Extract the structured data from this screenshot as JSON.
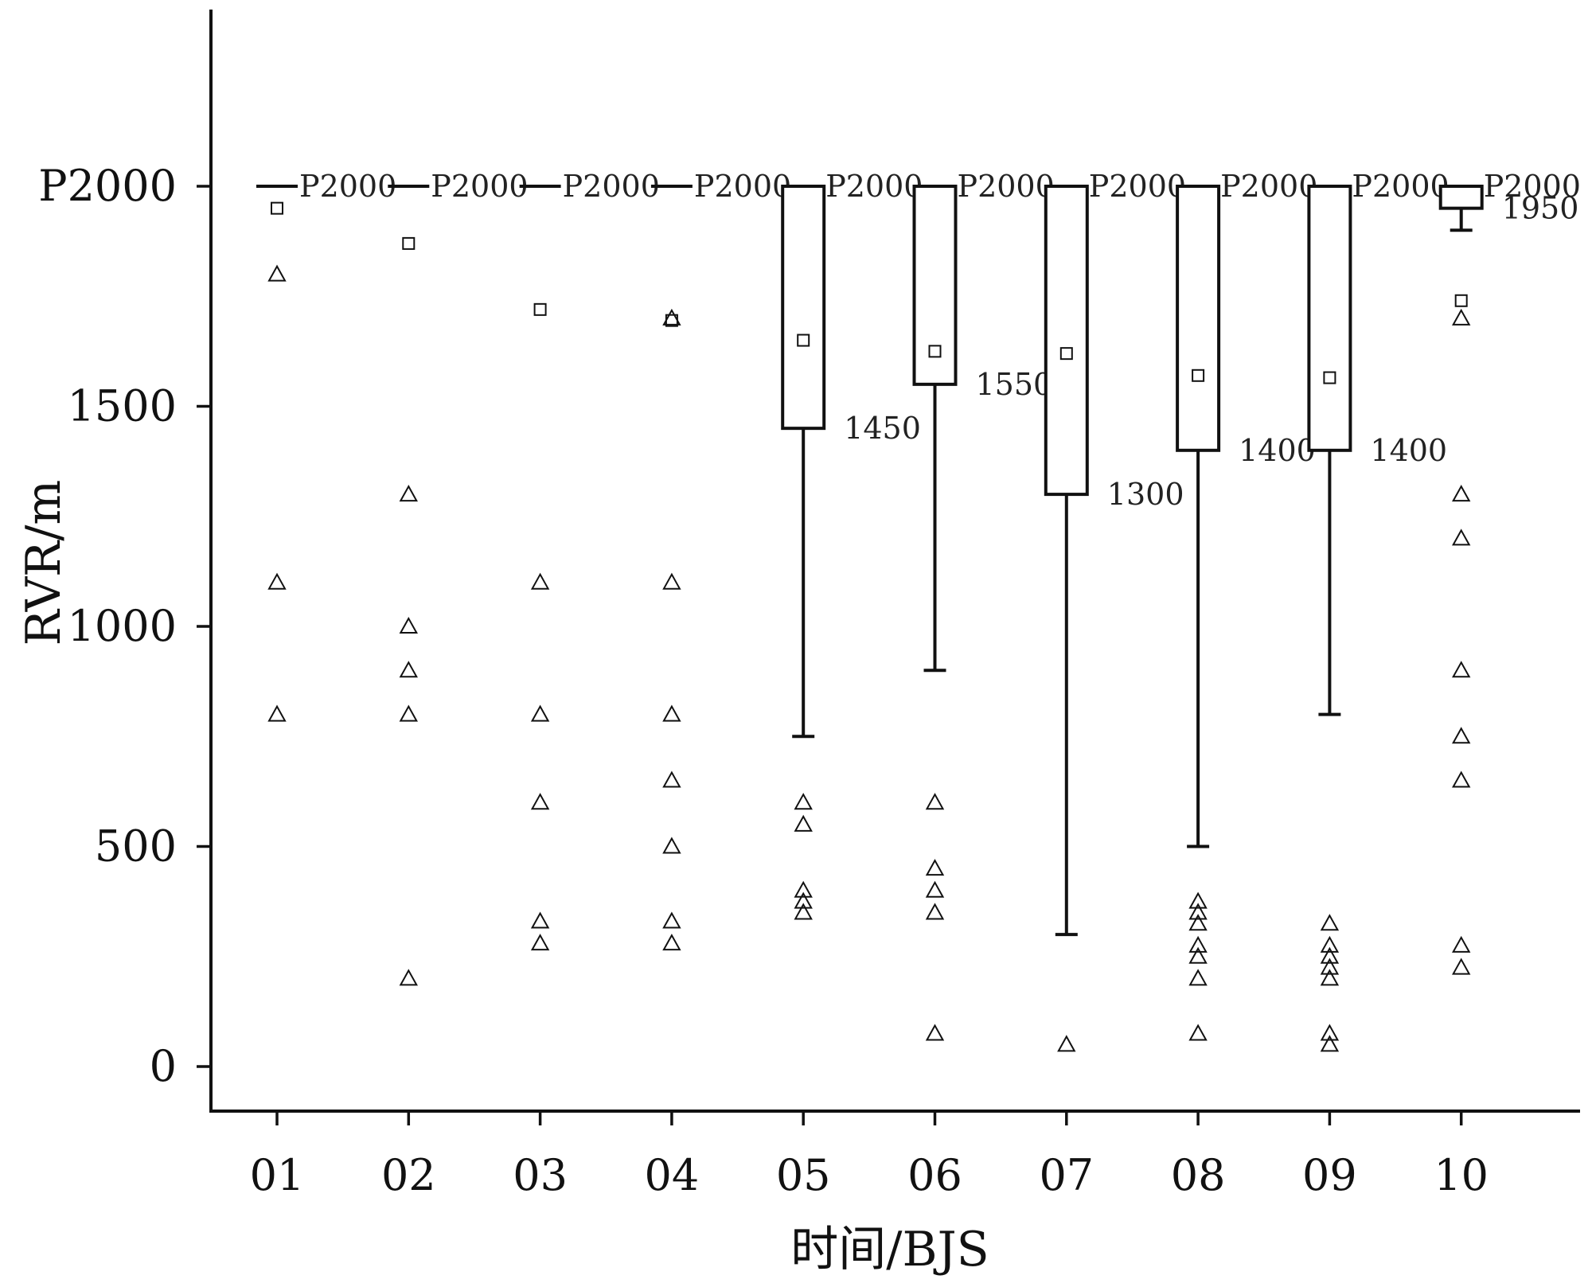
{
  "chart_data": {
    "type": "boxplot",
    "xlabel": "时间/BJS",
    "ylabel": "RVR/m",
    "ylim": [
      -100,
      2400
    ],
    "y_ticks": [
      {
        "value": 0,
        "label": "0"
      },
      {
        "value": 500,
        "label": "500"
      },
      {
        "value": 1000,
        "label": "1000"
      },
      {
        "value": 1500,
        "label": "1500"
      },
      {
        "value": 2000,
        "label": "P2000"
      }
    ],
    "categories": [
      "01",
      "02",
      "03",
      "04",
      "05",
      "06",
      "07",
      "08",
      "09",
      "10"
    ],
    "boxes": [
      {
        "category": "01",
        "q1": 2000,
        "q3": 2000,
        "whisker_low": 2000,
        "whisker_high": 2000,
        "mean": 1950,
        "q3_label": "P2000",
        "q1_label": "",
        "outliers": [
          1800,
          1100,
          800
        ]
      },
      {
        "category": "02",
        "q1": 2000,
        "q3": 2000,
        "whisker_low": 2000,
        "whisker_high": 2000,
        "mean": 1870,
        "q3_label": "P2000",
        "q1_label": "",
        "outliers": [
          1300,
          1000,
          900,
          800,
          200
        ]
      },
      {
        "category": "03",
        "q1": 2000,
        "q3": 2000,
        "whisker_low": 2000,
        "whisker_high": 2000,
        "mean": 1720,
        "q3_label": "P2000",
        "q1_label": "",
        "outliers": [
          1100,
          800,
          600,
          330,
          280
        ]
      },
      {
        "category": "04",
        "q1": 2000,
        "q3": 2000,
        "whisker_low": 2000,
        "whisker_high": 2000,
        "mean": 1695,
        "q3_label": "P2000",
        "q1_label": "",
        "outliers": [
          1700,
          1100,
          800,
          650,
          500,
          330,
          280
        ]
      },
      {
        "category": "05",
        "q1": 1450,
        "q3": 2000,
        "whisker_low": 750,
        "whisker_high": 2000,
        "mean": 1650,
        "q3_label": "P2000",
        "q1_label": "1450",
        "outliers": [
          600,
          550,
          400,
          375,
          350
        ]
      },
      {
        "category": "06",
        "q1": 1550,
        "q3": 2000,
        "whisker_low": 900,
        "whisker_high": 2000,
        "mean": 1625,
        "q3_label": "P2000",
        "q1_label": "1550",
        "outliers": [
          600,
          450,
          400,
          350,
          75
        ]
      },
      {
        "category": "07",
        "q1": 1300,
        "q3": 2000,
        "whisker_low": 300,
        "whisker_high": 2000,
        "mean": 1620,
        "q3_label": "P2000",
        "q1_label": "1300",
        "outliers": [
          50
        ]
      },
      {
        "category": "08",
        "q1": 1400,
        "q3": 2000,
        "whisker_low": 500,
        "whisker_high": 2000,
        "mean": 1570,
        "q3_label": "P2000",
        "q1_label": "1400",
        "outliers": [
          375,
          350,
          325,
          275,
          250,
          200,
          75
        ]
      },
      {
        "category": "09",
        "q1": 1400,
        "q3": 2000,
        "whisker_low": 800,
        "whisker_high": 2000,
        "mean": 1565,
        "q3_label": "P2000",
        "q1_label": "1400",
        "outliers": [
          325,
          275,
          250,
          225,
          200,
          75,
          50
        ]
      },
      {
        "category": "10",
        "q1": 1950,
        "q3": 2000,
        "whisker_low": 1900,
        "whisker_high": 2000,
        "mean": 1740,
        "q3_label": "P2000",
        "q1_label": "1950",
        "outliers": [
          1700,
          1300,
          1200,
          900,
          750,
          650,
          275,
          225
        ]
      }
    ]
  }
}
